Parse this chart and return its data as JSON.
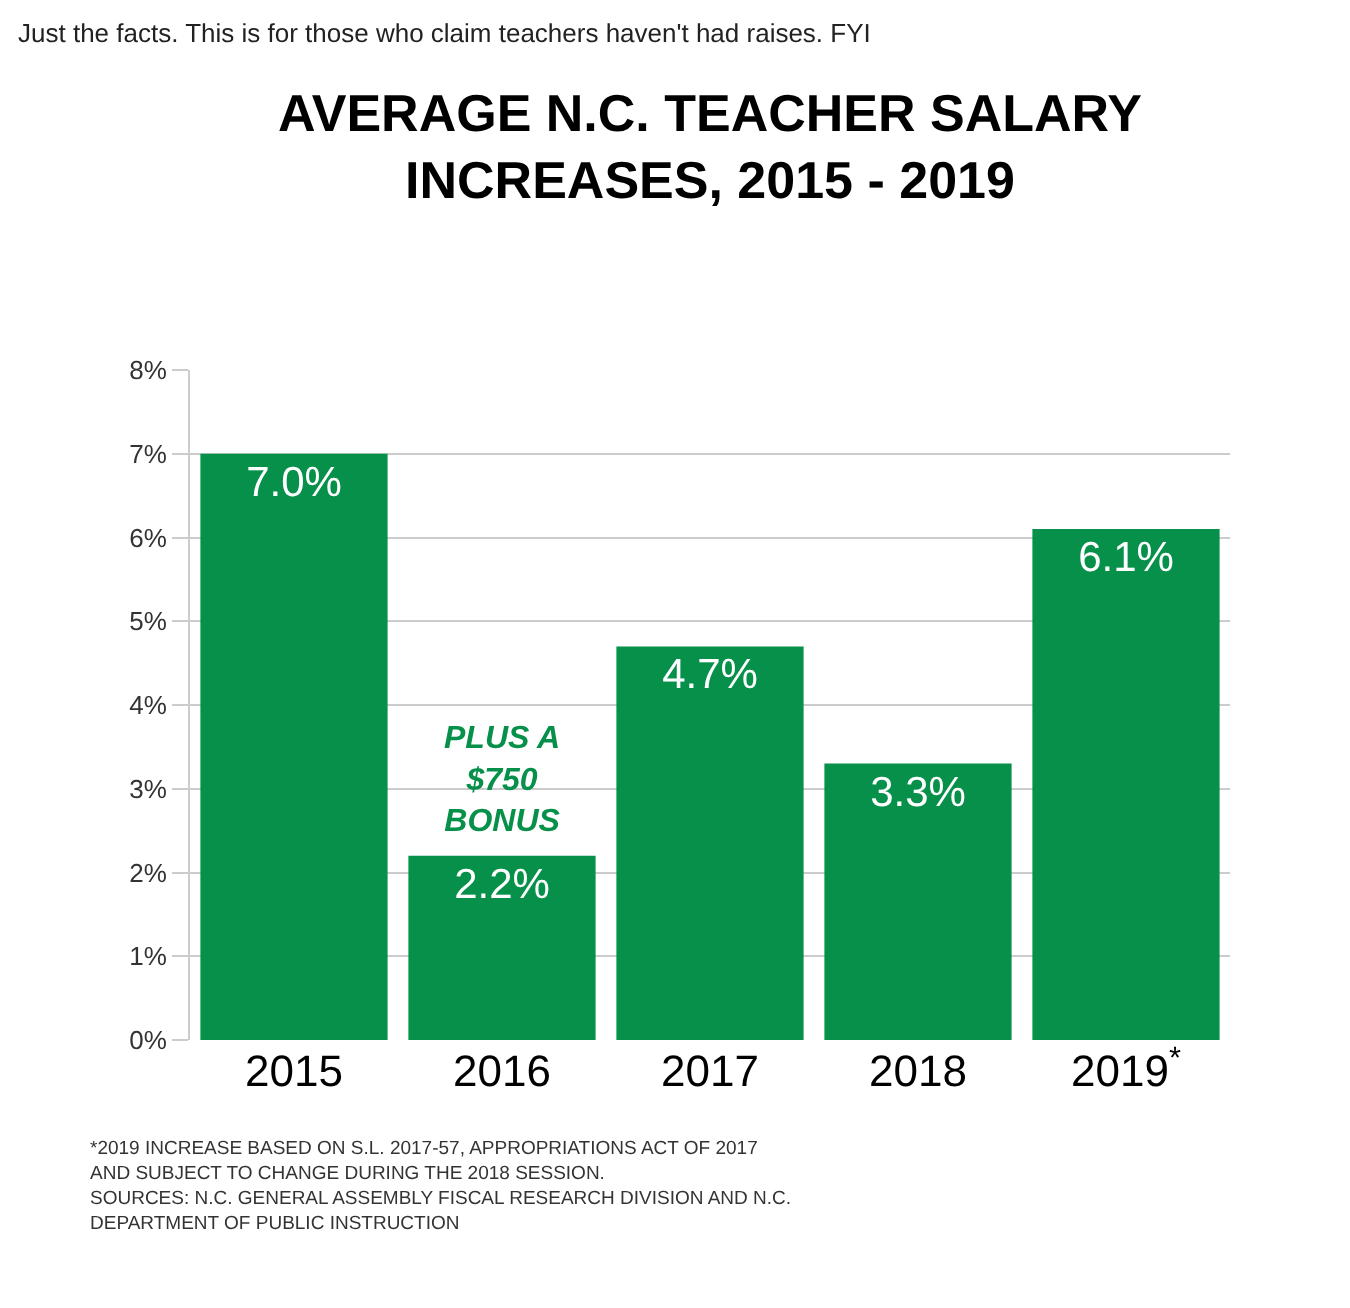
{
  "chart_data": {
    "type": "bar",
    "title": "AVERAGE N.C. TEACHER SALARY INCREASES, 2015 - 2019",
    "subtitle": "Just the facts. This is for those who claim teachers haven't had raises. FYI",
    "categories": [
      "2015",
      "2016",
      "2017",
      "2018",
      "2019$^{*}$"
    ],
    "values": [
      7.0,
      2.2,
      4.7,
      3.3,
      6.1
    ],
    "value_labels": [
      "7.0%",
      "2.2%",
      "4.7%",
      "3.3%",
      "6.1%"
    ],
    "color": "#06904a",
    "ylim": [
      0,
      8
    ],
    "yticks": [
      {
        "value": 0,
        "label": "0%"
      },
      {
        "value": 1,
        "label": "1%"
      },
      {
        "value": 2,
        "label": "2%"
      },
      {
        "value": 3,
        "label": "3%"
      },
      {
        "value": 4,
        "label": "4%"
      },
      {
        "value": 5,
        "label": "5%"
      },
      {
        "value": 6,
        "label": "6%"
      },
      {
        "value": 7,
        "label": "7%"
      },
      {
        "value": 8,
        "label": "8%"
      }
    ],
    "grid": "y",
    "annotations": [
      "PLUS A $750 BONUS",
      "*2019 INCREASE BASED ON S.L. 2017-57, APPROPRIATIONS ACT OF 2017 AND SUBJECT TO CHANGE DURING THE 2018 SESSION.",
      "SOURCES: N.C. GENERAL ASSEMBLY FISCAL RESEARCH DIVISION AND N.C. DEPARTMENT OF PUBLIC INSTRUCTION"
    ]
  }
}
